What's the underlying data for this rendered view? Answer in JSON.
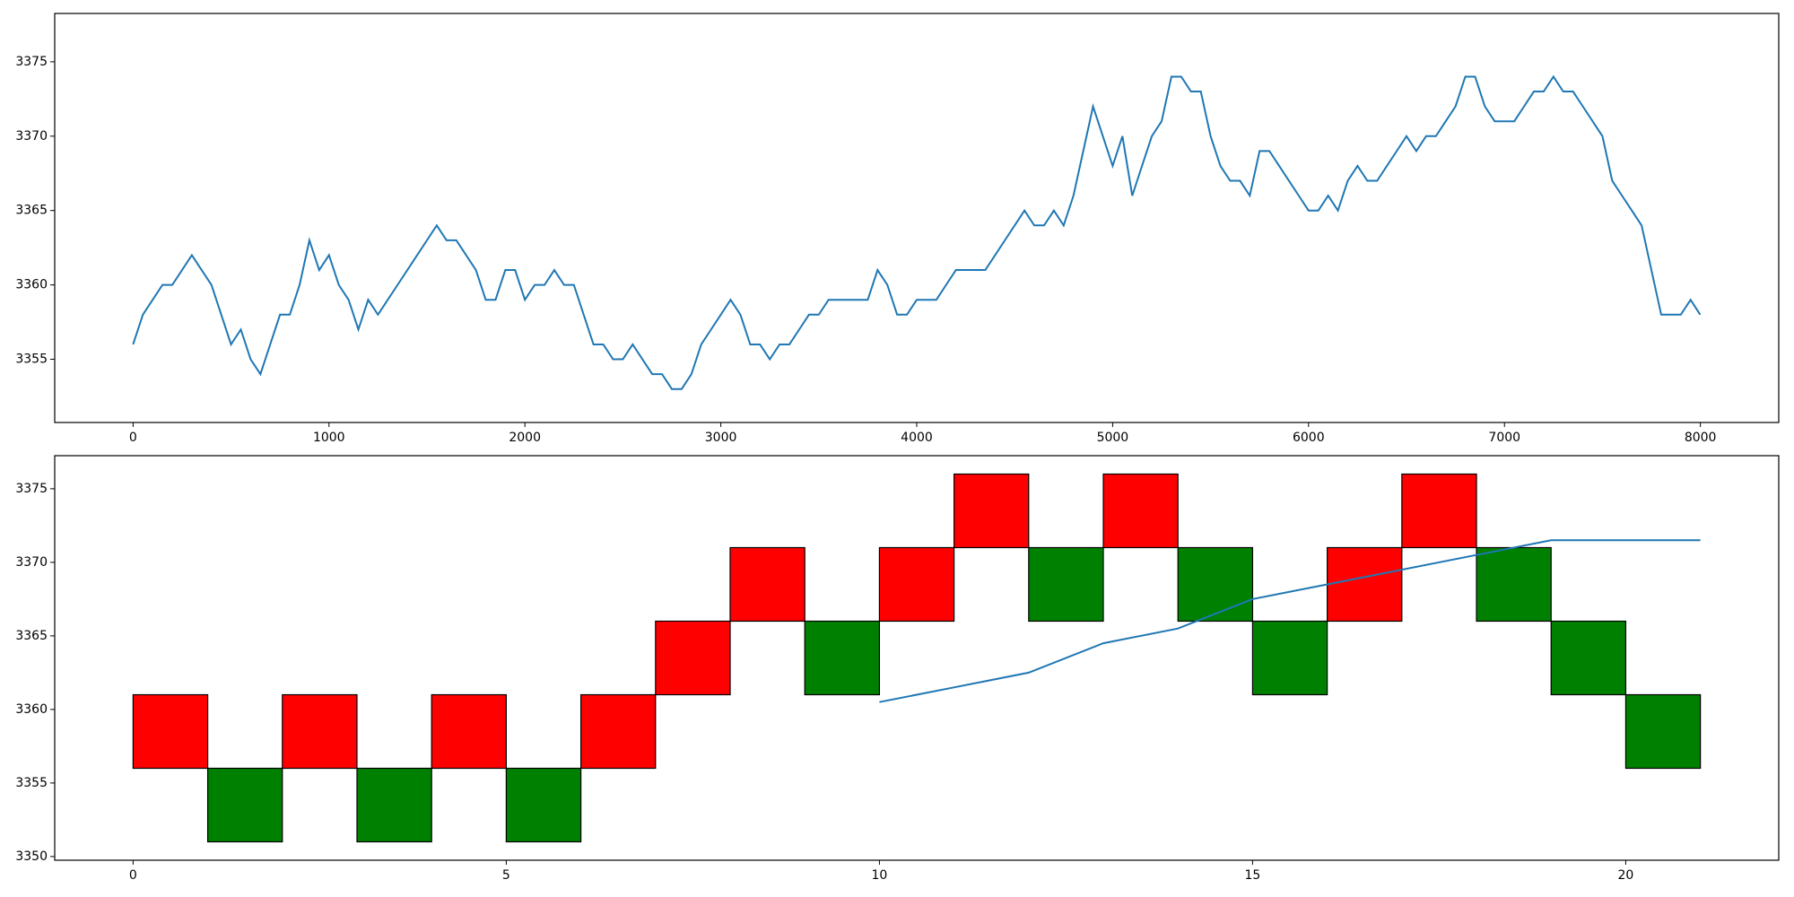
{
  "chart_data": [
    {
      "type": "line",
      "color": "#1f77b4",
      "x": [
        0,
        50,
        100,
        150,
        200,
        250,
        300,
        350,
        400,
        450,
        500,
        550,
        600,
        650,
        700,
        750,
        800,
        850,
        900,
        950,
        1000,
        1050,
        1100,
        1150,
        1200,
        1250,
        1300,
        1350,
        1400,
        1450,
        1500,
        1550,
        1600,
        1650,
        1700,
        1750,
        1800,
        1850,
        1900,
        1950,
        2000,
        2050,
        2100,
        2150,
        2200,
        2250,
        2300,
        2350,
        2400,
        2450,
        2500,
        2550,
        2600,
        2650,
        2700,
        2750,
        2800,
        2850,
        2900,
        2950,
        3000,
        3050,
        3100,
        3150,
        3200,
        3250,
        3300,
        3350,
        3400,
        3450,
        3500,
        3550,
        3600,
        3650,
        3700,
        3750,
        3800,
        3850,
        3900,
        3950,
        4000,
        4050,
        4100,
        4150,
        4200,
        4250,
        4300,
        4350,
        4400,
        4450,
        4500,
        4550,
        4600,
        4650,
        4700,
        4750,
        4800,
        4850,
        4900,
        4950,
        5000,
        5050,
        5100,
        5150,
        5200,
        5250,
        5300,
        5350,
        5400,
        5450,
        5500,
        5550,
        5600,
        5650,
        5700,
        5750,
        5800,
        5850,
        5900,
        5950,
        6000,
        6050,
        6100,
        6150,
        6200,
        6250,
        6300,
        6350,
        6400,
        6450,
        6500,
        6550,
        6600,
        6650,
        6700,
        6750,
        6800,
        6850,
        6900,
        6950,
        7000,
        7050,
        7100,
        7150,
        7200,
        7250,
        7300,
        7350,
        7400,
        7450,
        7500,
        7550,
        7600,
        7650,
        7700,
        7750,
        7800,
        7850,
        7900,
        7950,
        7999
      ],
      "values": [
        3356,
        3358,
        3359,
        3360,
        3360,
        3361,
        3362,
        3361,
        3360,
        3358,
        3356,
        3357,
        3355,
        3354,
        3356,
        3358,
        3358,
        3360,
        3363,
        3361,
        3362,
        3360,
        3359,
        3357,
        3359,
        3358,
        3359,
        3360,
        3361,
        3362,
        3363,
        3364,
        3363,
        3363,
        3362,
        3361,
        3359,
        3359,
        3361,
        3361,
        3359,
        3360,
        3360,
        3361,
        3360,
        3360,
        3358,
        3356,
        3356,
        3355,
        3355,
        3356,
        3355,
        3354,
        3354,
        3353,
        3353,
        3354,
        3356,
        3357,
        3358,
        3359,
        3358,
        3356,
        3356,
        3355,
        3356,
        3356,
        3357,
        3358,
        3358,
        3359,
        3359,
        3359,
        3359,
        3359,
        3361,
        3360,
        3358,
        3358,
        3359,
        3359,
        3359,
        3360,
        3361,
        3361,
        3361,
        3361,
        3362,
        3363,
        3364,
        3365,
        3364,
        3364,
        3365,
        3364,
        3366,
        3369,
        3372,
        3370,
        3368,
        3370,
        3366,
        3368,
        3370,
        3371,
        3374,
        3374,
        3373,
        3373,
        3370,
        3368,
        3367,
        3367,
        3366,
        3369,
        3369,
        3368,
        3367,
        3366,
        3365,
        3365,
        3366,
        3365,
        3367,
        3368,
        3367,
        3367,
        3368,
        3369,
        3370,
        3369,
        3370,
        3370,
        3371,
        3372,
        3374,
        3374,
        3372,
        3371,
        3371,
        3371,
        3372,
        3373,
        3373,
        3374,
        3373,
        3373,
        3372,
        3371,
        3370,
        3367,
        3366,
        3365,
        3364,
        3361,
        3358,
        3358,
        3358,
        3359,
        3358
      ],
      "xlim": [
        -400,
        8400
      ],
      "ylim": [
        3350.75,
        3378.25
      ],
      "xticks": [
        0,
        1000,
        2000,
        3000,
        4000,
        5000,
        6000,
        7000,
        8000
      ],
      "yticks": [
        3355,
        3360,
        3365,
        3370,
        3375
      ]
    },
    {
      "type": "renko",
      "up_color": "#ff0000",
      "down_color": "#008000",
      "edge_color": "#000000",
      "x": [
        0,
        1,
        2,
        3,
        4,
        5,
        6,
        7,
        8,
        9,
        10,
        11,
        12,
        13,
        14,
        15,
        16,
        17,
        18,
        19,
        20
      ],
      "open": [
        3356,
        3356,
        3356,
        3356,
        3356,
        3356,
        3356,
        3361,
        3366,
        3366,
        3366,
        3371,
        3371,
        3371,
        3371,
        3366,
        3366,
        3371,
        3371,
        3366,
        3361
      ],
      "close": [
        3361,
        3351,
        3361,
        3351,
        3361,
        3351,
        3361,
        3366,
        3371,
        3361,
        3371,
        3376,
        3366,
        3376,
        3366,
        3361,
        3371,
        3376,
        3366,
        3361,
        3356
      ],
      "line_color": "#1f77b4",
      "line_x": [
        10,
        11,
        12,
        13,
        14,
        15,
        16,
        17,
        18,
        19,
        20,
        21
      ],
      "line_values": [
        3360.5,
        3361.5,
        3362.5,
        3364.5,
        3365.5,
        3367.5,
        3368.5,
        3369.5,
        3370.5,
        3371.5,
        3371.5,
        3371.5
      ],
      "xlim": [
        -1.05,
        22.05
      ],
      "ylim": [
        3349.75,
        3377.25
      ],
      "xticks": [
        0,
        5,
        10,
        15,
        20
      ],
      "yticks": [
        3350,
        3355,
        3360,
        3365,
        3370,
        3375
      ]
    }
  ]
}
